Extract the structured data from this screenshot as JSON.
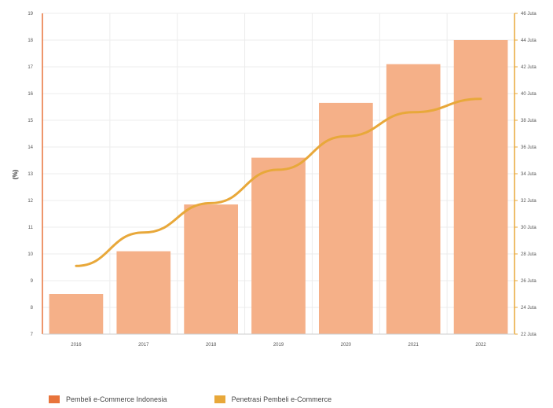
{
  "chart_data": {
    "type": "bar",
    "categories": [
      "2016",
      "2017",
      "2018",
      "2019",
      "2020",
      "2021",
      "2022"
    ],
    "ylabel": "(%)",
    "ylim": [
      7,
      19
    ],
    "y_ticks": [
      "7",
      "8",
      "9",
      "10",
      "11",
      "12",
      "13",
      "14",
      "15",
      "16",
      "17",
      "18",
      "19"
    ],
    "y2lim": [
      22,
      46
    ],
    "y2_ticks": [
      "22 Juta",
      "24 Juta",
      "26 Juta",
      "28 Juta",
      "30 Juta",
      "32 Juta",
      "34 Juta",
      "36 Juta",
      "38 Juta",
      "40 Juta",
      "42 Juta",
      "44 Juta",
      "46 Juta"
    ],
    "series": [
      {
        "name": "Pembeli e-Commerce Indonesia",
        "type": "bar",
        "axis": "left",
        "color": "#f5b088",
        "legend_color": "#e8743b",
        "values": [
          8.5,
          10.1,
          11.85,
          13.6,
          15.65,
          17.1,
          18.0
        ]
      },
      {
        "name": "Penetrasi Pembeli e-Commerce",
        "type": "line",
        "axis": "right",
        "color": "#e8a83a",
        "values": [
          27.1,
          29.6,
          31.8,
          34.3,
          36.8,
          38.6,
          39.6
        ]
      }
    ],
    "grid": true,
    "legend_position": "bottom-left"
  }
}
